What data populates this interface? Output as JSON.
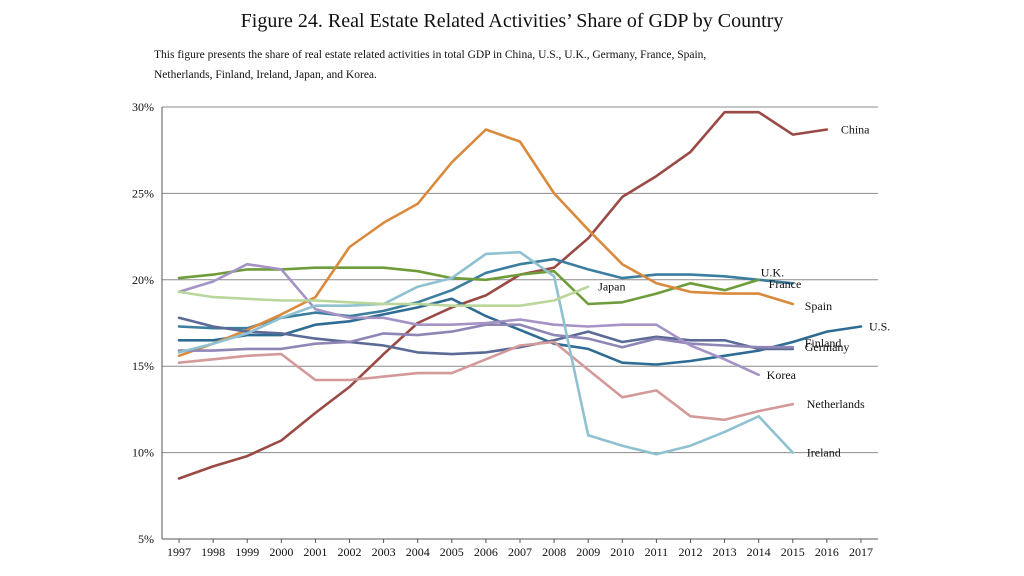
{
  "figure": {
    "title": "Figure 24. Real Estate Related Activities’ Share of GDP by Country",
    "caption_line1": "This figure presents the share of real estate related activities in total GDP in China, U.S., U.K., Germany, France, Spain,",
    "caption_line2": "Netherlands, Finland, Ireland, Japan, and Korea."
  },
  "chart_data": {
    "type": "line",
    "title": "Figure 24. Real Estate Related Activities’ Share of GDP by Country",
    "xlabel": "",
    "ylabel": "",
    "x": [
      1997,
      1998,
      1999,
      2000,
      2001,
      2002,
      2003,
      2004,
      2005,
      2006,
      2007,
      2008,
      2009,
      2010,
      2011,
      2012,
      2013,
      2014,
      2015,
      2016,
      2017
    ],
    "x_tick_labels": [
      "1997",
      "1998",
      "1999",
      "2000",
      "2001",
      "2002",
      "2003",
      "2004",
      "2005",
      "2006",
      "2007",
      "2008",
      "2009",
      "2010",
      "2011",
      "2012",
      "2013",
      "2014",
      "2015",
      "2016",
      "2017"
    ],
    "ylim": [
      5,
      30
    ],
    "y_ticks": [
      5,
      10,
      15,
      20,
      25,
      30
    ],
    "y_tick_labels": [
      "5%",
      "10%",
      "15%",
      "20%",
      "25%",
      "30%"
    ],
    "grid": "horizontal",
    "legend": "none (series labeled directly at line ends)",
    "series": [
      {
        "name": "China",
        "color": "#9a4a45",
        "label_pos": "right-end",
        "values": [
          8.5,
          9.2,
          9.8,
          10.7,
          12.3,
          13.8,
          15.7,
          17.5,
          18.4,
          19.1,
          20.3,
          20.7,
          22.4,
          24.8,
          26.0,
          27.4,
          29.7,
          29.7,
          28.4,
          28.7,
          null
        ]
      },
      {
        "name": "U.S.",
        "color": "#2e6c93",
        "label_pos": "right-end",
        "values": [
          16.5,
          16.5,
          16.8,
          16.8,
          17.4,
          17.6,
          18.0,
          18.4,
          18.9,
          17.9,
          17.1,
          16.3,
          16.0,
          15.2,
          15.1,
          15.3,
          15.6,
          15.9,
          16.4,
          17.0,
          17.3
        ]
      },
      {
        "name": "U.K.",
        "color": "#3c7ea0",
        "label_pos": "above-end",
        "values": [
          17.3,
          17.2,
          17.2,
          17.8,
          18.1,
          17.9,
          18.2,
          18.7,
          19.4,
          20.4,
          20.9,
          21.2,
          20.6,
          20.1,
          20.3,
          20.3,
          20.2,
          20.0,
          19.8,
          null,
          null
        ]
      },
      {
        "name": "France",
        "color": "#6f9c3b",
        "label_pos": "right-end",
        "values": [
          20.1,
          20.3,
          20.6,
          20.6,
          20.7,
          20.7,
          20.7,
          20.5,
          20.1,
          20.0,
          20.3,
          20.5,
          18.6,
          18.7,
          19.2,
          19.8,
          19.4,
          20.0,
          null,
          null,
          null
        ]
      },
      {
        "name": "Spain",
        "color": "#d98a3c",
        "label_pos": "right-end",
        "values": [
          15.6,
          16.3,
          17.1,
          18.0,
          19.0,
          21.9,
          23.3,
          24.4,
          26.8,
          28.7,
          28.0,
          25.0,
          22.9,
          20.9,
          19.8,
          19.3,
          19.2,
          19.2,
          18.6,
          null,
          null
        ]
      },
      {
        "name": "Finland",
        "color": "#5b6a96",
        "label_pos": "right-end",
        "values": [
          17.8,
          17.3,
          17.0,
          16.9,
          16.6,
          16.4,
          16.2,
          15.8,
          15.7,
          15.8,
          16.1,
          16.5,
          17.0,
          16.4,
          16.7,
          16.5,
          16.5,
          16.0,
          16.0,
          null,
          null
        ]
      },
      {
        "name": "Germany",
        "color": "#8f86b6",
        "label_pos": "right-end",
        "values": [
          15.9,
          15.9,
          16.0,
          16.0,
          16.3,
          16.4,
          16.9,
          16.8,
          17.0,
          17.4,
          17.4,
          16.8,
          16.6,
          16.1,
          16.6,
          16.3,
          16.2,
          16.1,
          16.1,
          null,
          null
        ]
      },
      {
        "name": "Korea",
        "color": "#a493c4",
        "label_pos": "right-end",
        "values": [
          19.3,
          19.9,
          20.9,
          20.6,
          18.3,
          17.8,
          17.8,
          17.4,
          17.4,
          17.5,
          17.7,
          17.4,
          17.3,
          17.4,
          17.4,
          16.2,
          15.4,
          14.5,
          null,
          null,
          null
        ]
      },
      {
        "name": "Netherlands",
        "color": "#d49a9a",
        "label_pos": "right-end",
        "values": [
          15.2,
          15.4,
          15.6,
          15.7,
          14.2,
          14.2,
          14.4,
          14.6,
          14.6,
          15.4,
          16.2,
          16.4,
          14.8,
          13.2,
          13.6,
          12.1,
          11.9,
          12.4,
          12.8,
          null,
          null
        ]
      },
      {
        "name": "Ireland",
        "color": "#8fc1d0",
        "label_pos": "right-end",
        "values": [
          15.8,
          16.3,
          16.9,
          17.8,
          18.5,
          18.5,
          18.6,
          19.6,
          20.1,
          21.5,
          21.6,
          20.2,
          11.0,
          10.4,
          9.9,
          10.4,
          11.2,
          12.1,
          10.0,
          null,
          null
        ]
      },
      {
        "name": "Japan",
        "color": "#b9d69b",
        "label_pos": "right-end",
        "values": [
          19.3,
          19.0,
          18.9,
          18.8,
          18.8,
          18.7,
          18.6,
          18.6,
          18.5,
          18.5,
          18.5,
          18.8,
          19.6,
          null,
          null,
          null,
          null,
          null,
          null,
          null,
          null
        ]
      }
    ]
  }
}
